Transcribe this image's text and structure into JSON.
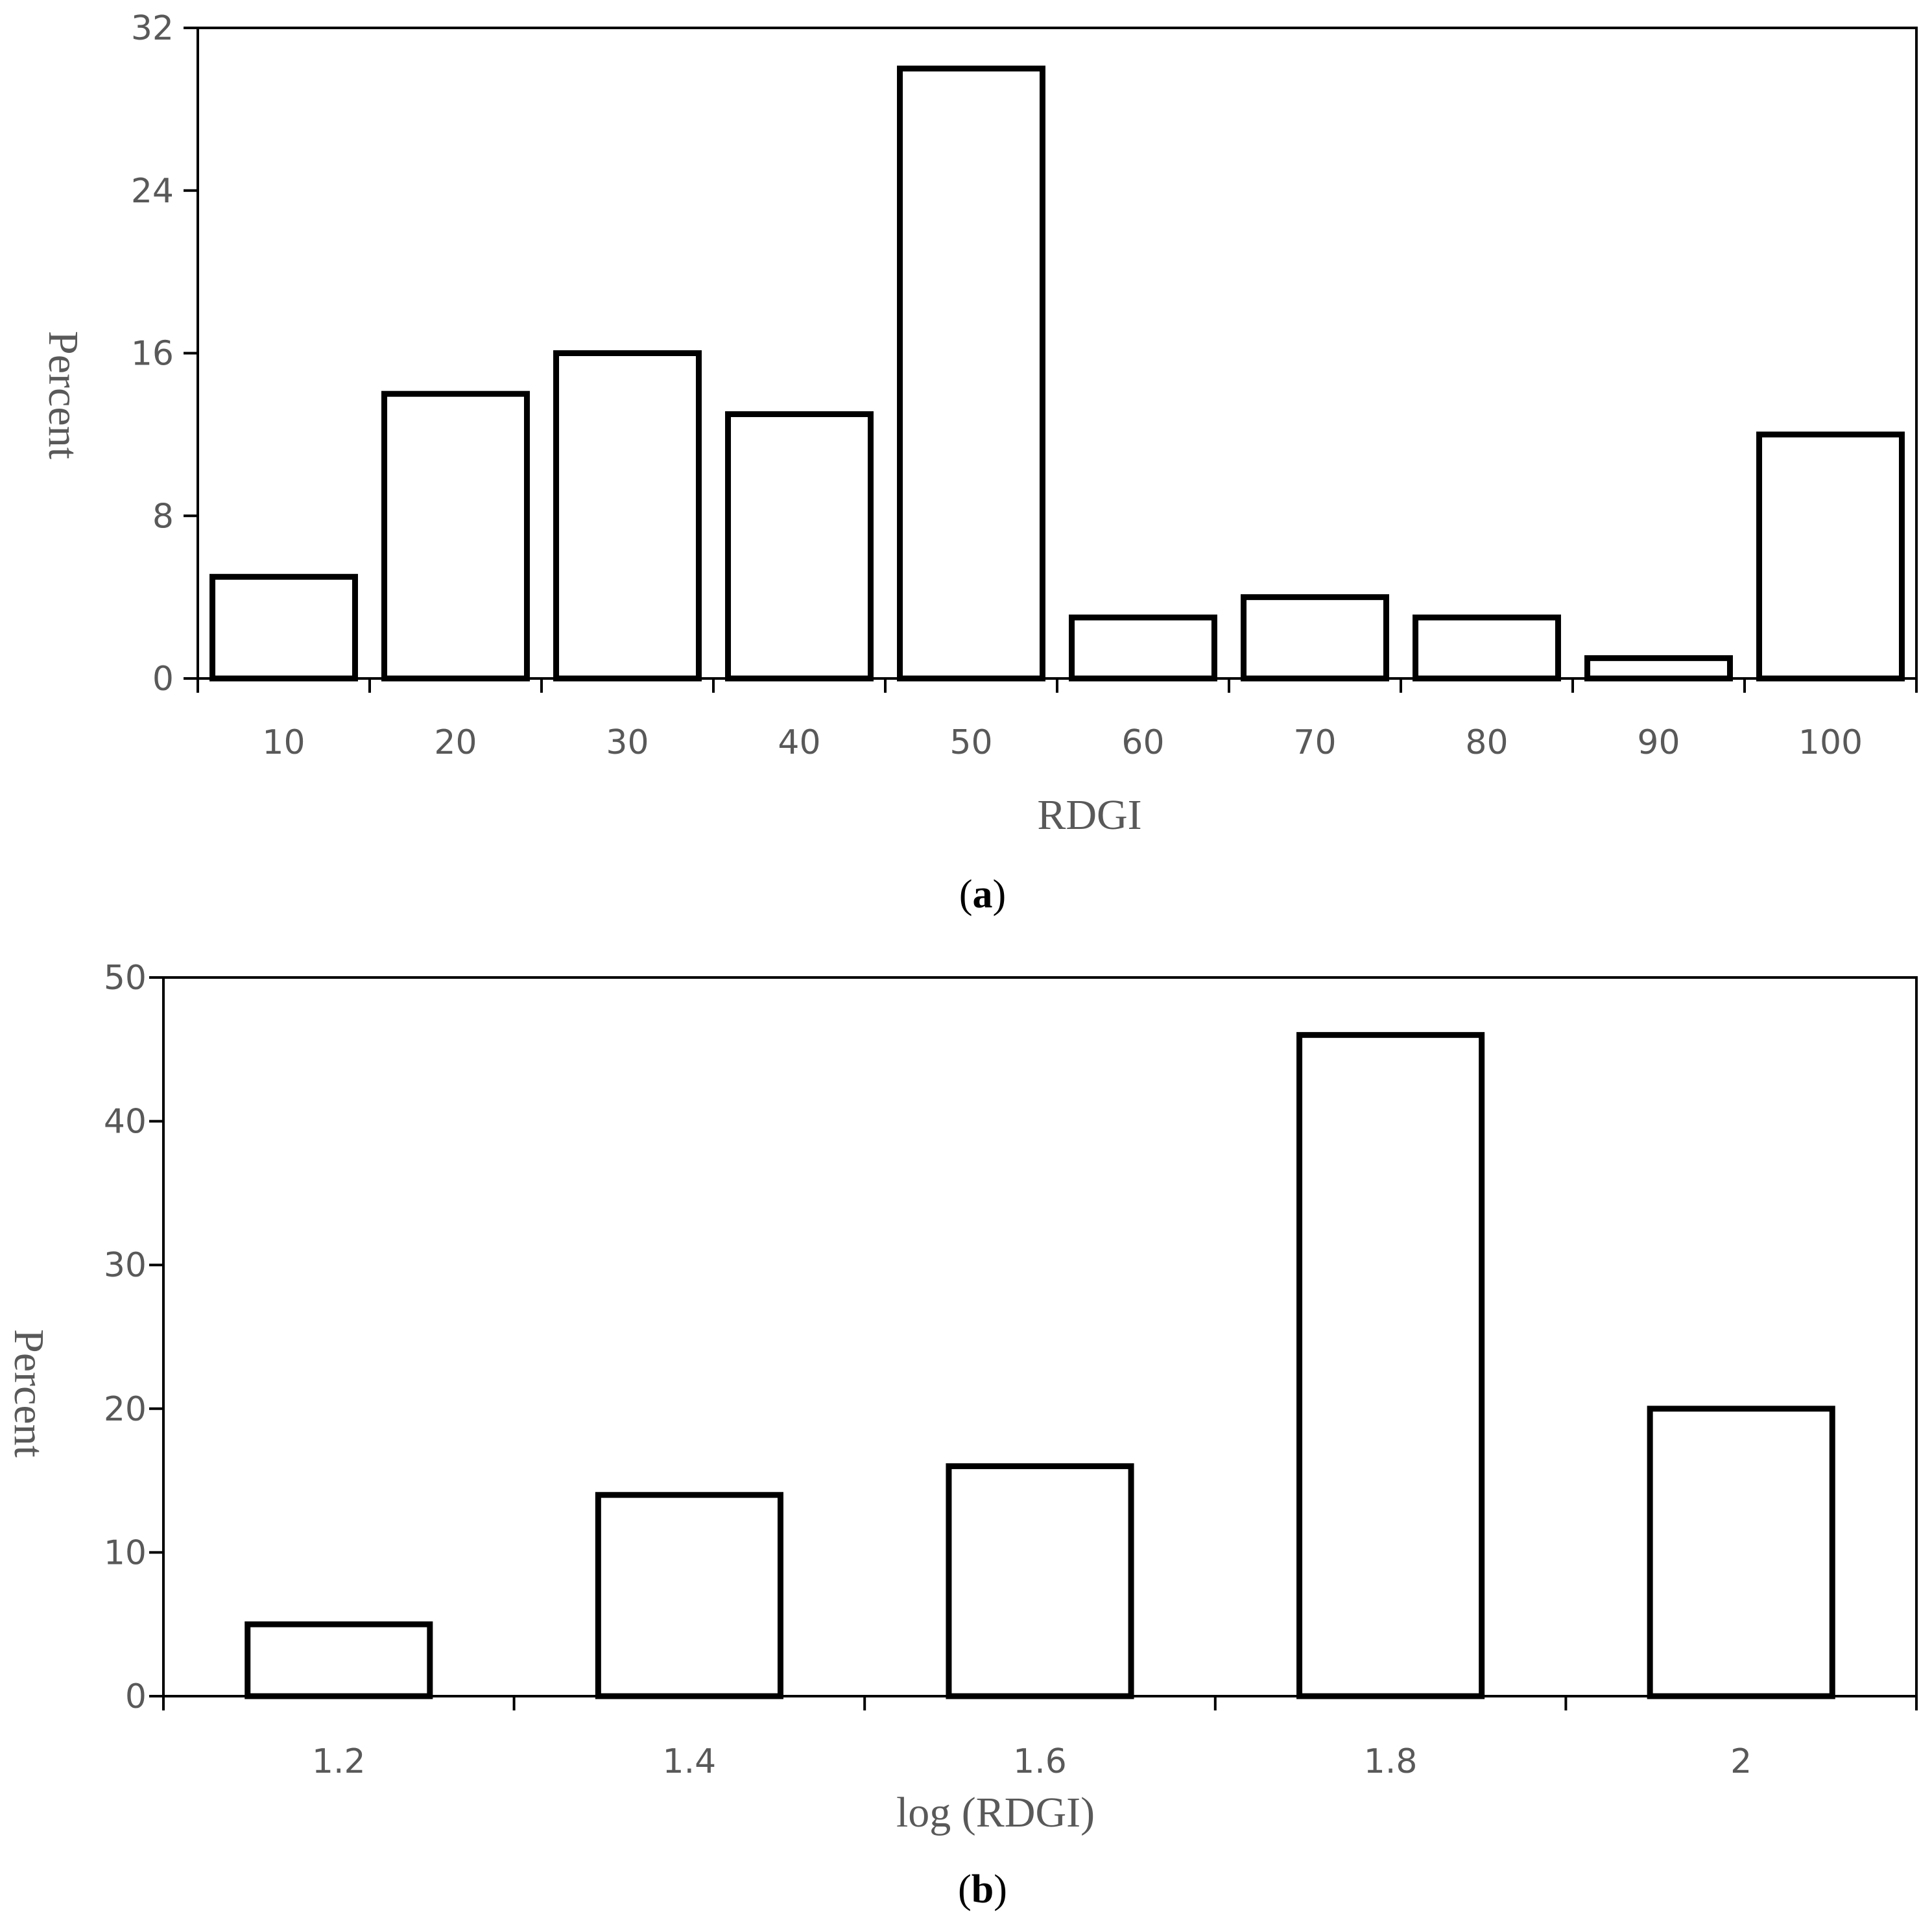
{
  "chart_data": [
    {
      "type": "bar",
      "panel_label": "a",
      "xlabel": "RDGI",
      "ylabel": "Percent",
      "categories": [
        "10",
        "20",
        "30",
        "40",
        "50",
        "60",
        "70",
        "80",
        "90",
        "100"
      ],
      "values": [
        5,
        14,
        16,
        13,
        30,
        3,
        4,
        3,
        1,
        12
      ],
      "yticks": [
        "0",
        "8",
        "16",
        "24",
        "32"
      ],
      "ylim": [
        0,
        32
      ],
      "grid": false,
      "legend": "none",
      "bar_fill": "#ffffff",
      "bar_stroke": "#000000"
    },
    {
      "type": "bar",
      "panel_label": "b",
      "xlabel": "log (RDGI)",
      "ylabel": "Percent",
      "categories": [
        "1.2",
        "1.4",
        "1.6",
        "1.8",
        "2"
      ],
      "values": [
        5,
        14,
        16,
        46,
        20
      ],
      "yticks": [
        "0",
        "10",
        "20",
        "30",
        "40",
        "50"
      ],
      "ylim": [
        0,
        50
      ],
      "grid": false,
      "legend": "none",
      "bar_fill": "#ffffff",
      "bar_stroke": "#000000"
    }
  ]
}
